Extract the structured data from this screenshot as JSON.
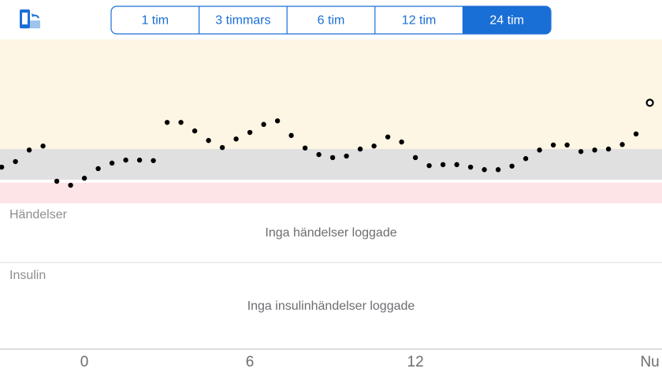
{
  "toolbar": {
    "ranges": [
      "1 tim",
      "3 timmars",
      "6 tim",
      "12 tim",
      "24 tim"
    ],
    "selected": 4
  },
  "chart_data": {
    "type": "scatter",
    "x": [
      -3,
      -2.5,
      -2,
      -1.5,
      -1,
      -0.5,
      0,
      0.5,
      1,
      1.5,
      2,
      2.5,
      3,
      3.5,
      4,
      4.5,
      5,
      5.5,
      6,
      6.5,
      7,
      7.5,
      8,
      8.5,
      9,
      9.5,
      10,
      10.5,
      11,
      11.5,
      12,
      12.5,
      13,
      13.5,
      14,
      14.5,
      15,
      15.5,
      16,
      16.5,
      17,
      17.5,
      18,
      18.5,
      19,
      19.5,
      20,
      20.5
    ],
    "values": [
      6.4,
      7.5,
      9.8,
      10.6,
      3.6,
      2.8,
      4.2,
      6.1,
      7.2,
      7.8,
      7.8,
      7.7,
      15.3,
      15.3,
      13.6,
      11.7,
      10.3,
      12.0,
      13.3,
      14.9,
      15.6,
      12.7,
      10.2,
      8.9,
      8.3,
      8.6,
      10.0,
      10.6,
      12.4,
      11.4,
      8.3,
      6.7,
      6.9,
      6.9,
      6.4,
      5.9,
      5.9,
      6.6,
      8.1,
      9.8,
      10.8,
      10.8,
      9.5,
      9.8,
      10.0,
      10.9,
      13.0,
      19.2
    ],
    "color": "#000000",
    "xlim": [
      -3.06,
      20.94
    ],
    "ylim": [
      -0.8,
      31.8
    ],
    "xticks": [
      0,
      6,
      12,
      {
        "value": 20.5,
        "label": "Nu"
      }
    ],
    "target_range": [
      3.9,
      10
    ],
    "low_threshold": 3.3
  },
  "sections": [
    {
      "title": "Händelser",
      "empty_text": "Inga händelser loggade"
    },
    {
      "title": "Insulin",
      "empty_text": "Inga insulinhändelser loggade"
    }
  ]
}
